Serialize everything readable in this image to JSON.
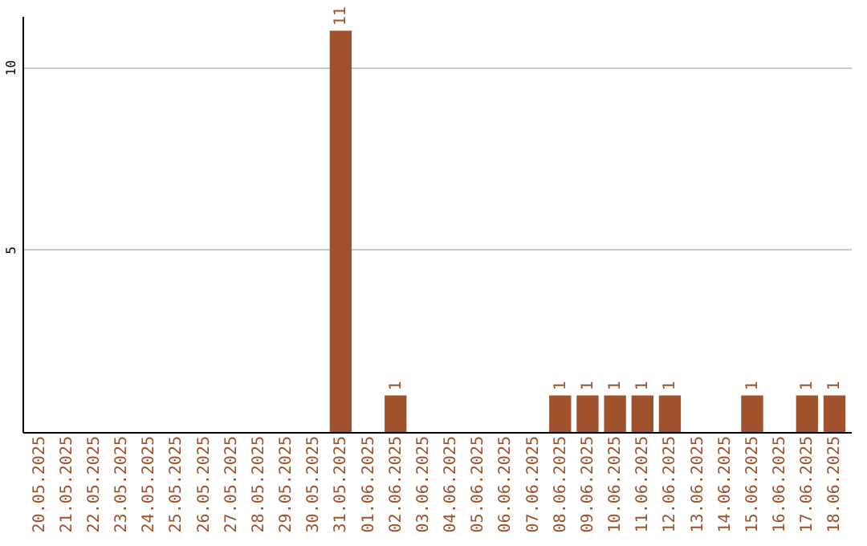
{
  "chart_data": {
    "type": "bar",
    "categories": [
      "20.05.2025",
      "21.05.2025",
      "22.05.2025",
      "23.05.2025",
      "24.05.2025",
      "25.05.2025",
      "26.05.2025",
      "27.05.2025",
      "28.05.2025",
      "29.05.2025",
      "30.05.2025",
      "31.05.2025",
      "01.06.2025",
      "02.06.2025",
      "03.06.2025",
      "04.06.2025",
      "05.06.2025",
      "06.06.2025",
      "07.06.2025",
      "08.06.2025",
      "09.06.2025",
      "10.06.2025",
      "11.06.2025",
      "12.06.2025",
      "13.06.2025",
      "14.06.2025",
      "15.06.2025",
      "16.06.2025",
      "17.06.2025",
      "18.06.2025"
    ],
    "values": [
      0,
      0,
      0,
      0,
      0,
      0,
      0,
      0,
      0,
      0,
      0,
      11,
      0,
      1,
      0,
      0,
      0,
      0,
      0,
      1,
      1,
      1,
      1,
      1,
      0,
      0,
      1,
      0,
      1,
      1
    ],
    "value_labels": [
      null,
      null,
      null,
      null,
      null,
      null,
      null,
      null,
      null,
      null,
      null,
      "11",
      null,
      "1",
      null,
      null,
      null,
      null,
      null,
      "1",
      "1",
      "1",
      "1",
      "1",
      null,
      null,
      "1",
      null,
      "1",
      "1"
    ],
    "color": "#a0522d",
    "ylim": [
      0,
      11.4
    ],
    "yticks": [
      5,
      10
    ],
    "grid": "y"
  }
}
